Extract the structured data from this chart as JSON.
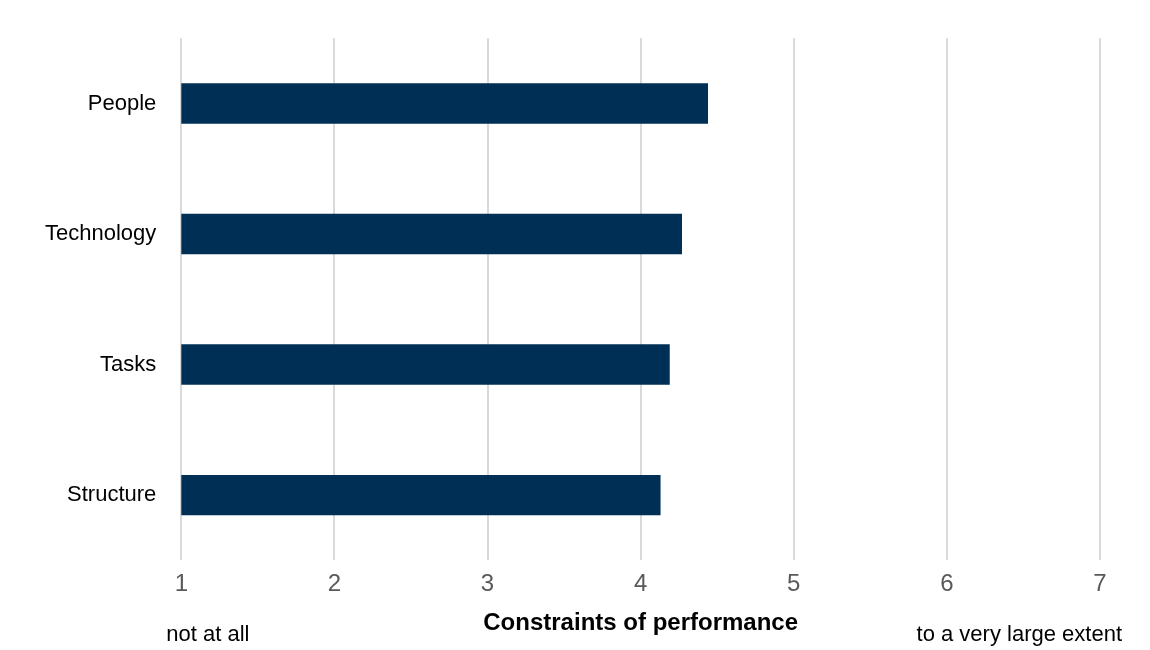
{
  "chart_data": {
    "type": "bar",
    "orientation": "horizontal",
    "xlabel": "Constraints of performance",
    "categories": [
      "People",
      "Technology",
      "Tasks",
      "Structure"
    ],
    "values": [
      4.44,
      4.27,
      4.19,
      4.13
    ],
    "color": "#002f56",
    "xlim": [
      1,
      7
    ],
    "xticks": [
      1,
      2,
      3,
      4,
      5,
      6,
      7
    ],
    "grid": "x",
    "legend": false,
    "annotations": [
      "not at all",
      "to a very large extent"
    ]
  }
}
